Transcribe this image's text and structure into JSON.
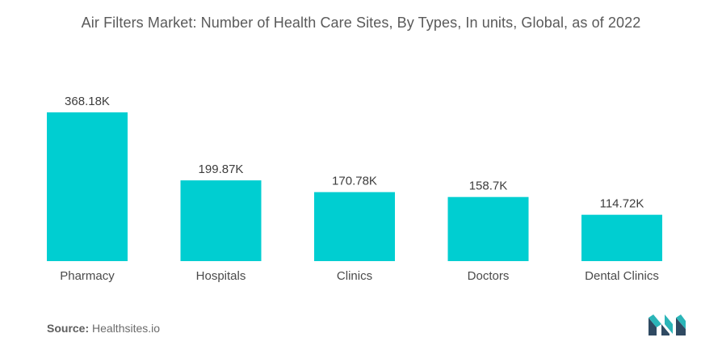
{
  "title": "Air Filters Market: Number of Health Care Sites, By Types, In units, Global, as of 2022",
  "source": {
    "label": "Source:",
    "text": "Healthsites.io"
  },
  "colors": {
    "bar": "#00CED1",
    "label": "#3d3d3d",
    "axis_text": "#4a4a4a",
    "logo_dark": "#2f4a62",
    "logo_teal": "#2bb5b8"
  },
  "logo": {
    "icon": "mordor-intelligence-logo-icon"
  },
  "chart_data": {
    "type": "bar",
    "title": "Air Filters Market: Number of Health Care Sites, By Types, In units, Global, as of 2022",
    "categories": [
      "Pharmacy",
      "Hospitals",
      "Clinics",
      "Doctors",
      "Dental Clinics"
    ],
    "values": [
      368.18,
      199.87,
      170.78,
      158.7,
      114.72
    ],
    "value_labels": [
      "368.18K",
      "199.87K",
      "170.78K",
      "158.7K",
      "114.72K"
    ],
    "unit": "K",
    "xlabel": "",
    "ylabel": "",
    "ylim": [
      0,
      368.18
    ],
    "grid": false,
    "legend": "none"
  }
}
